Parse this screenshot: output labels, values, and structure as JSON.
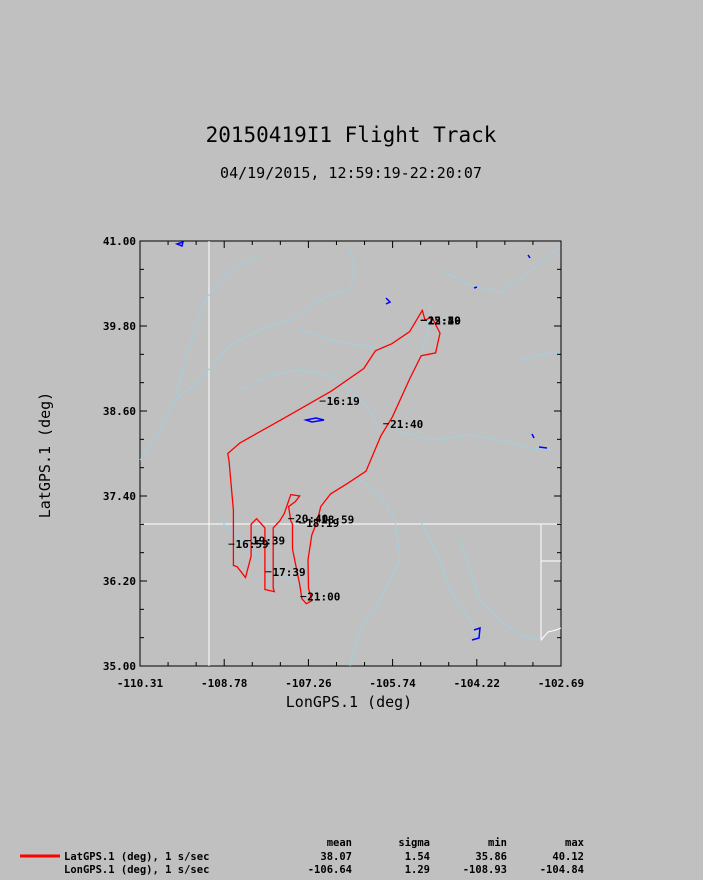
{
  "chart_data": {
    "type": "line",
    "title": "20150419I1 Flight Track",
    "subtitle": "04/19/2015, 12:59:19-22:20:07",
    "xlabel": "LonGPS.1 (deg)",
    "ylabel": "LatGPS.1 (deg)",
    "xlim": [
      -110.31,
      -102.69
    ],
    "ylim": [
      35.0,
      41.0
    ],
    "x_ticks": [
      "-110.31",
      "-108.78",
      "-107.26",
      "-105.74",
      "-104.22",
      "-102.69"
    ],
    "y_ticks": [
      "35.00",
      "36.20",
      "37.40",
      "38.60",
      "39.80",
      "41.00"
    ],
    "grid": false,
    "series": [
      {
        "name": "LatGPS.1 (deg), 1 s/sec",
        "color": "#ff0000",
        "track": [
          [
            -105.15,
            39.88
          ],
          [
            -105.03,
            39.93
          ],
          [
            -104.88,
            39.7
          ],
          [
            -104.96,
            39.42
          ],
          [
            -105.22,
            39.38
          ],
          [
            -105.43,
            39.05
          ],
          [
            -105.74,
            38.52
          ],
          [
            -105.95,
            38.25
          ],
          [
            -106.22,
            37.75
          ],
          [
            -106.55,
            37.58
          ],
          [
            -106.86,
            37.43
          ],
          [
            -107.04,
            37.25
          ],
          [
            -107.1,
            37.05
          ],
          [
            -107.2,
            36.85
          ],
          [
            -107.27,
            36.5
          ],
          [
            -107.26,
            36.1
          ],
          [
            -107.2,
            35.92
          ],
          [
            -107.3,
            35.88
          ],
          [
            -107.38,
            35.95
          ],
          [
            -107.42,
            36.15
          ],
          [
            -107.55,
            36.65
          ],
          [
            -107.55,
            37.0
          ],
          [
            -107.58,
            37.05
          ],
          [
            -107.62,
            37.25
          ],
          [
            -107.5,
            37.32
          ],
          [
            -107.42,
            37.4
          ],
          [
            -107.58,
            37.42
          ],
          [
            -107.7,
            37.15
          ],
          [
            -107.78,
            37.05
          ],
          [
            -107.9,
            36.95
          ],
          [
            -107.9,
            36.1
          ],
          [
            -107.88,
            36.05
          ],
          [
            -108.05,
            36.08
          ],
          [
            -108.05,
            36.95
          ],
          [
            -108.2,
            37.08
          ],
          [
            -108.3,
            37.0
          ],
          [
            -108.3,
            36.55
          ],
          [
            -108.4,
            36.25
          ],
          [
            -108.55,
            36.4
          ],
          [
            -108.62,
            36.42
          ],
          [
            -108.62,
            37.2
          ],
          [
            -108.7,
            37.9
          ],
          [
            -108.72,
            38.0
          ],
          [
            -108.5,
            38.15
          ],
          [
            -107.7,
            38.5
          ],
          [
            -106.85,
            38.88
          ],
          [
            -106.26,
            39.2
          ],
          [
            -106.05,
            39.45
          ],
          [
            -105.75,
            39.55
          ],
          [
            -105.43,
            39.72
          ],
          [
            -105.2,
            40.02
          ],
          [
            -105.15,
            39.88
          ]
        ]
      }
    ],
    "time_labels": [
      {
        "text": "16:19",
        "lon": -106.95,
        "lat": 38.74
      },
      {
        "text": "21:40",
        "lon": -105.8,
        "lat": 38.42
      },
      {
        "text": "20:40",
        "lon": -107.52,
        "lat": 37.08
      },
      {
        "text": "18:59",
        "lon": -107.05,
        "lat": 37.07
      },
      {
        "text": "18:19",
        "lon": -107.32,
        "lat": 37.02
      },
      {
        "text": "19:39",
        "lon": -108.3,
        "lat": 36.77
      },
      {
        "text": "16:59",
        "lon": -108.6,
        "lat": 36.72
      },
      {
        "text": "17:39",
        "lon": -107.93,
        "lat": 36.33
      },
      {
        "text": "21:00",
        "lon": -107.3,
        "lat": 35.98
      },
      {
        "text": "22:20",
        "lon": -105.12,
        "lat": 39.88
      },
      {
        "text": "12:59",
        "lon": -105.12,
        "lat": 39.88
      },
      {
        "text": "15:40",
        "lon": -105.12,
        "lat": 39.88
      }
    ],
    "stats": {
      "headers": [
        "mean",
        "sigma",
        "min",
        "max"
      ],
      "rows": [
        {
          "name": "LatGPS.1 (deg), 1 s/sec",
          "mean": "38.07",
          "sigma": "1.54",
          "min": "35.86",
          "max": "40.12"
        },
        {
          "name": "LonGPS.1 (deg), 1 s/sec",
          "mean": "-106.64",
          "sigma": "1.29",
          "min": "-108.93",
          "max": "-104.84"
        }
      ]
    }
  }
}
